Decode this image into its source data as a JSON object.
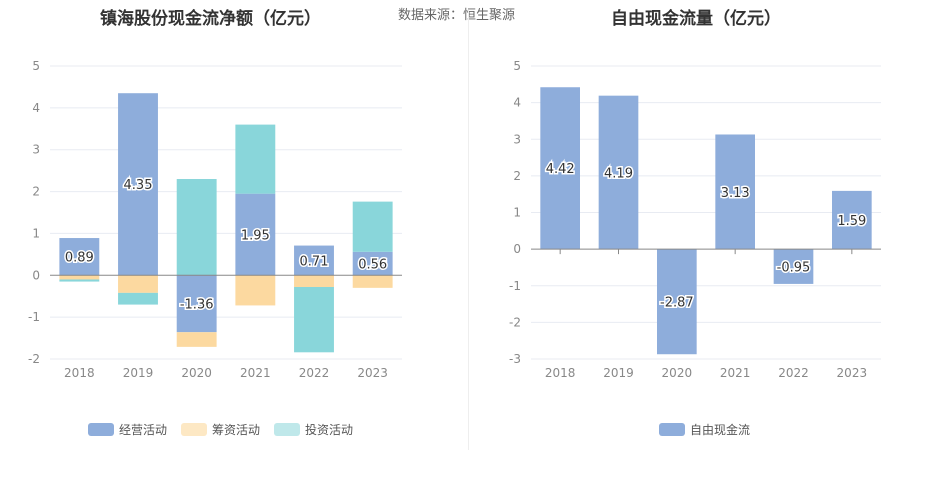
{
  "source_label": "数据来源：恒生聚源",
  "chart_data": [
    {
      "type": "bar",
      "stacked": true,
      "title": "镇海股份现金流净额（亿元）",
      "categories": [
        "2018",
        "2019",
        "2020",
        "2021",
        "2022",
        "2023"
      ],
      "ylim": [
        -2,
        5
      ],
      "yticks": [
        -2,
        -1,
        0,
        1,
        2,
        3,
        4,
        5
      ],
      "grid": true,
      "legend_position": "bottom",
      "series": [
        {
          "name": "经营活动",
          "color": "#8eaddb",
          "values": [
            0.89,
            4.35,
            -1.36,
            1.95,
            0.71,
            0.56
          ],
          "labels": [
            "0.89",
            "4.35",
            "-1.36",
            "1.95",
            "0.71",
            "0.56"
          ]
        },
        {
          "name": "筹资活动",
          "color": "#fcd9a0",
          "values": [
            -0.1,
            -0.42,
            -0.35,
            -0.72,
            -0.28,
            -0.3
          ]
        },
        {
          "name": "投资活动",
          "color": "#89d6da",
          "values": [
            -0.05,
            -0.28,
            2.3,
            1.65,
            -1.56,
            1.2
          ]
        }
      ]
    },
    {
      "type": "bar",
      "title": "自由现金流量（亿元）",
      "categories": [
        "2018",
        "2019",
        "2020",
        "2021",
        "2022",
        "2023"
      ],
      "ylim": [
        -3,
        5
      ],
      "yticks": [
        -3,
        -2,
        -1,
        0,
        1,
        2,
        3,
        4,
        5
      ],
      "grid": true,
      "legend_position": "bottom",
      "series": [
        {
          "name": "自由现金流",
          "color": "#8eaddb",
          "values": [
            4.42,
            4.19,
            -2.87,
            3.13,
            -0.95,
            1.59
          ],
          "labels": [
            "4.42",
            "4.19",
            "-2.87",
            "3.13",
            "-0.95",
            "1.59"
          ]
        }
      ]
    }
  ]
}
